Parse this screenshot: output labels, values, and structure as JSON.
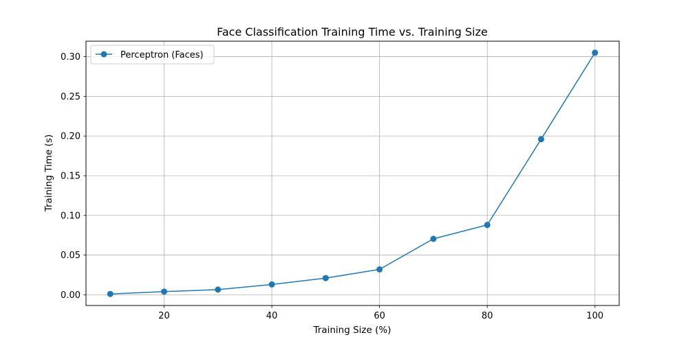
{
  "chart_data": {
    "type": "line",
    "title": "Face Classification Training Time vs. Training Size",
    "xlabel": "Training Size (%)",
    "ylabel": "Training Time (s)",
    "xlim": [
      5.5,
      104.5
    ],
    "ylim": [
      -0.0135,
      0.3195
    ],
    "x_ticks": [
      20,
      40,
      60,
      80,
      100
    ],
    "x_tick_labels": [
      "20",
      "40",
      "60",
      "80",
      "100"
    ],
    "y_ticks": [
      0.0,
      0.05,
      0.1,
      0.15,
      0.2,
      0.25,
      0.3
    ],
    "y_tick_labels": [
      "0.00",
      "0.05",
      "0.10",
      "0.15",
      "0.20",
      "0.25",
      "0.30"
    ],
    "grid": true,
    "legend_position": "upper-left",
    "series": [
      {
        "name": "Perceptron (Faces)",
        "color": "#1f77b4",
        "marker": "circle",
        "x": [
          10,
          20,
          30,
          40,
          50,
          60,
          70,
          80,
          90,
          100
        ],
        "y": [
          0.001,
          0.004,
          0.0065,
          0.013,
          0.021,
          0.032,
          0.0705,
          0.088,
          0.196,
          0.305
        ]
      }
    ]
  }
}
